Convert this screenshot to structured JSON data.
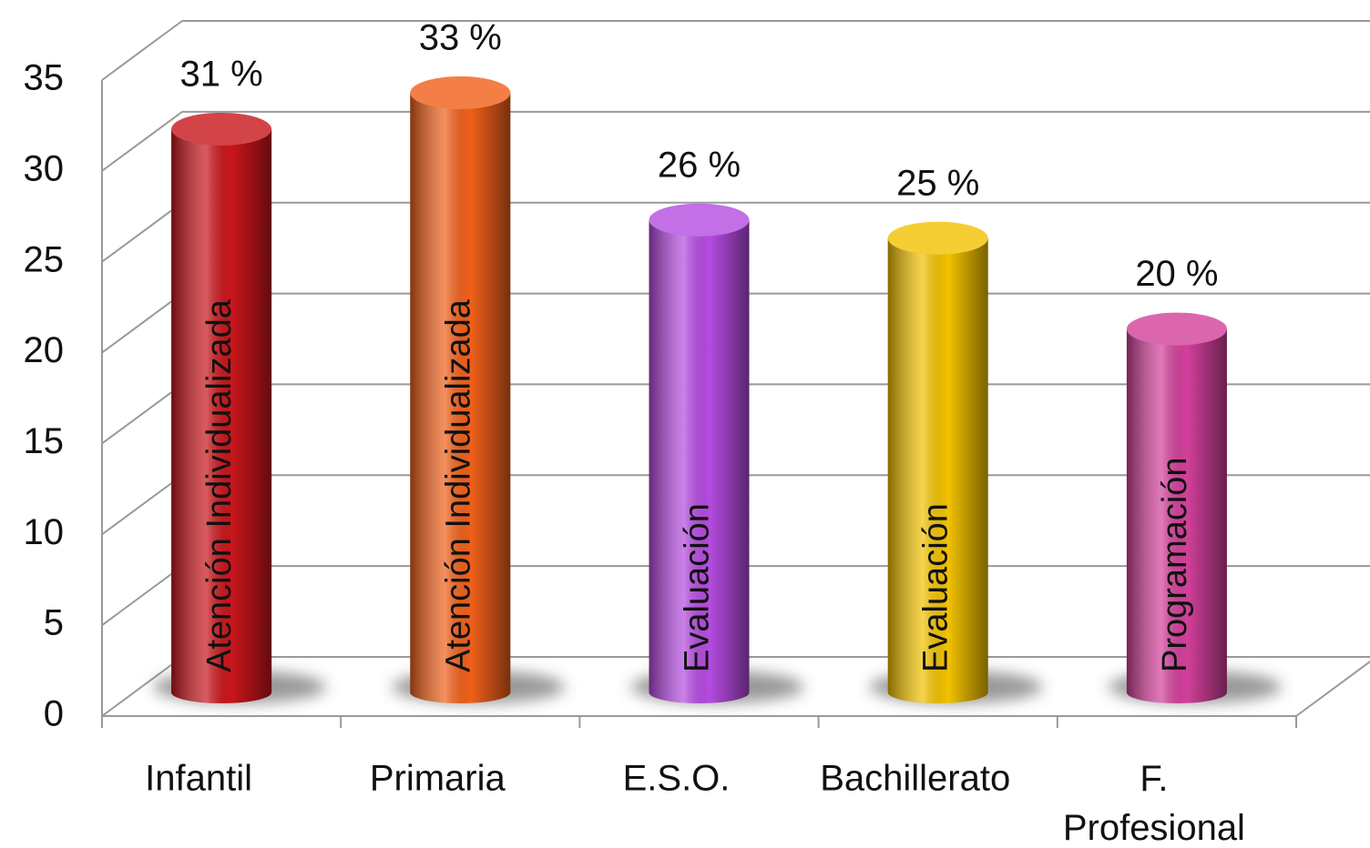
{
  "chart_data": {
    "type": "bar3d",
    "categories": [
      "Infantil",
      "Primaria",
      "E.S.O.",
      "Bachillerato",
      "F.\nProfesional"
    ],
    "values": [
      31,
      33,
      26,
      25,
      20
    ],
    "value_labels": [
      "31 %",
      "33 %",
      "26 %",
      "25 %",
      "20 %"
    ],
    "bar_labels": [
      "Atención Individualizada",
      "Atención Individualizada",
      "Evaluación",
      "Evaluación",
      "Programación"
    ],
    "colors": [
      "#c8161c",
      "#f0601a",
      "#b54be0",
      "#f2c200",
      "#d2409a"
    ],
    "ylim": [
      0,
      35
    ],
    "yticks": [
      0,
      5,
      10,
      15,
      20,
      25,
      30,
      35
    ],
    "grid": true
  }
}
